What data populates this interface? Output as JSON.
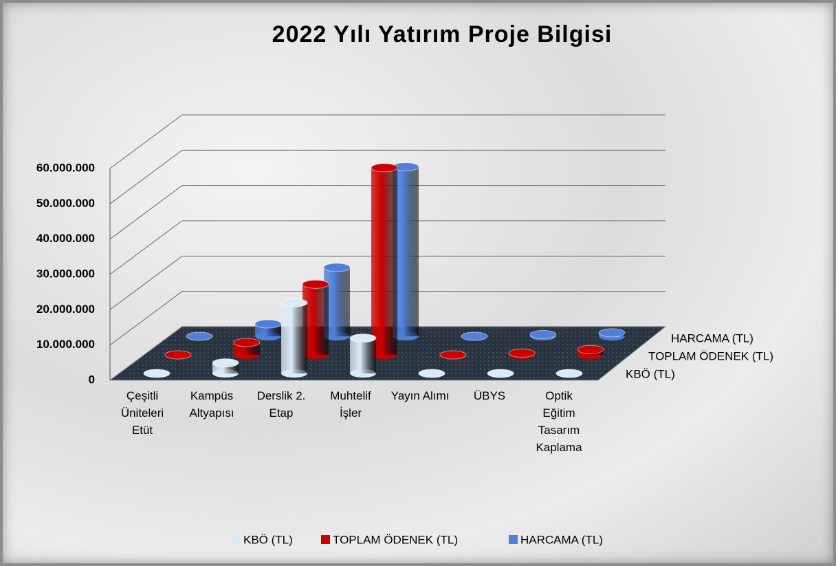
{
  "chart_data": {
    "type": "bar3d",
    "title": "2022 Yılı Yatırım Proje Bilgisi",
    "categories": [
      "Çeşitli Üniteleri Etüt",
      "Kampüs Altyapısı",
      "Derslik 2. Etap",
      "Muhtelif İşler",
      "Yayın Alımı",
      "ÜBYS",
      "Optik Eğitim Tasarım Kaplama"
    ],
    "series": [
      {
        "name": "KBÖ (TL)",
        "color": "#dceaf8",
        "values": [
          0,
          3000000,
          20000000,
          10000000,
          0,
          0,
          0
        ]
      },
      {
        "name": "TOPLAM ÖDENEK (TL)",
        "color": "#cc0000",
        "values": [
          0,
          3500000,
          20000000,
          53000000,
          0,
          500000,
          1500000
        ]
      },
      {
        "name": "HARCAMA (TL)",
        "color": "#4f7fd8",
        "values": [
          0,
          3500000,
          19500000,
          48000000,
          0,
          500000,
          1000000
        ]
      }
    ],
    "ylim": [
      0,
      60000000
    ],
    "yticks": [
      0,
      {
        "value": 10000000,
        "label": "10.000.000"
      },
      {
        "value": 20000000,
        "label": "20.000.000"
      },
      {
        "value": 30000000,
        "label": "30.000.000"
      },
      {
        "value": 40000000,
        "label": "40.000.000"
      },
      {
        "value": 50000000,
        "label": "50.000.000"
      },
      {
        "value": 60000000,
        "label": "60.000.000"
      }
    ],
    "grid": true,
    "legend": "bottom"
  }
}
